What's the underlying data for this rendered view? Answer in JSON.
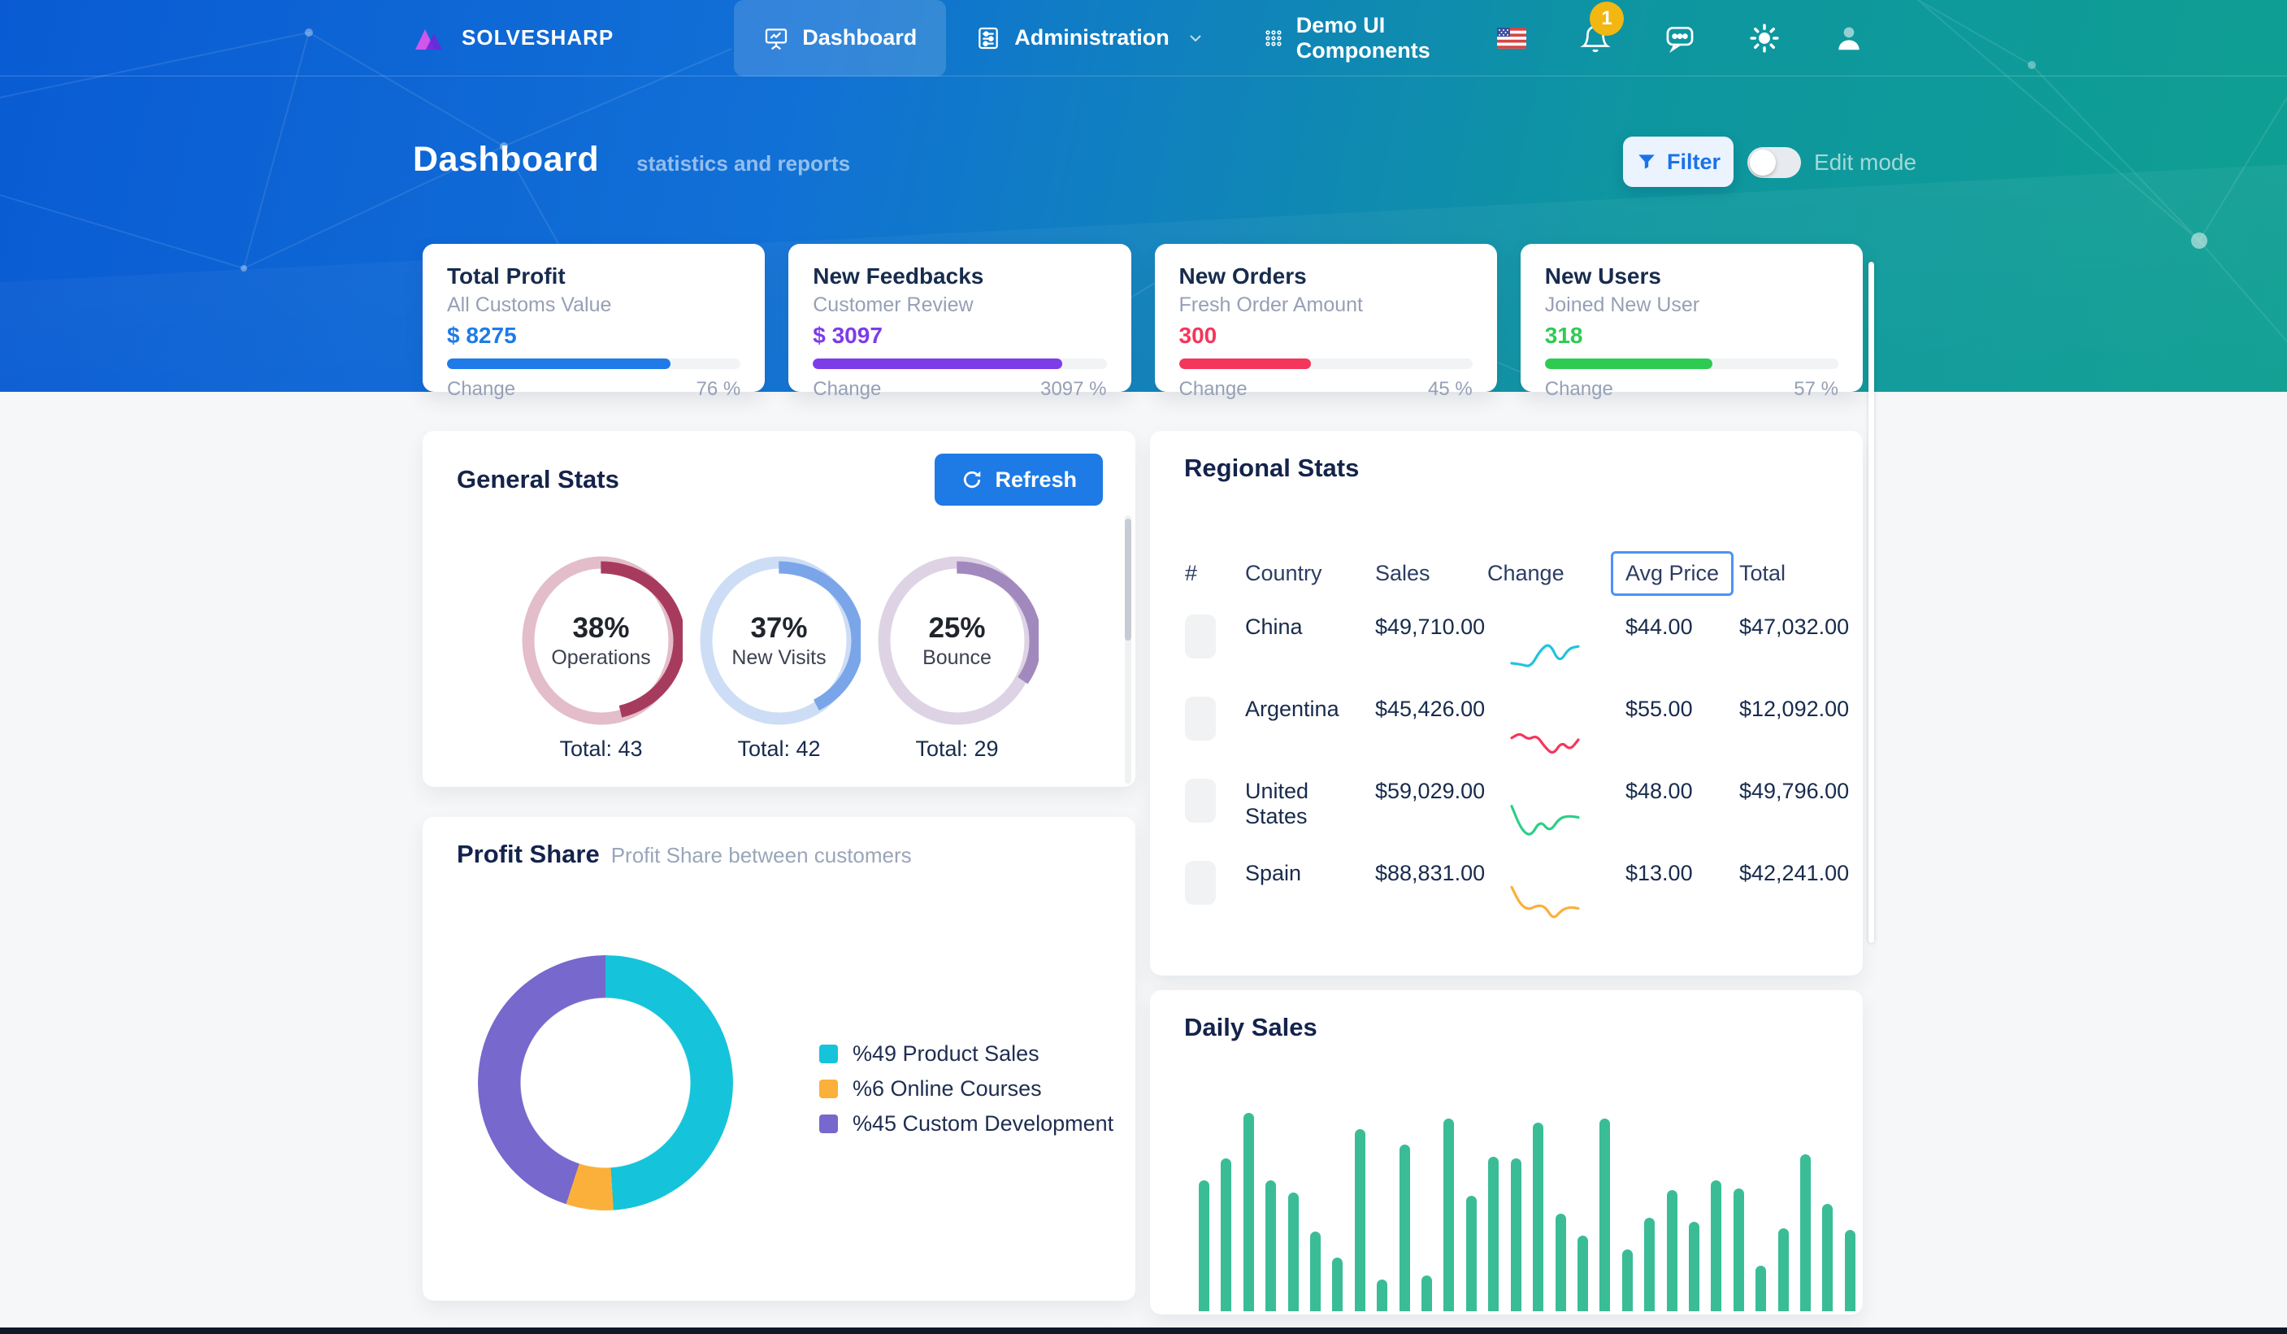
{
  "nav": {
    "brand": "SOLVESHARP",
    "items": [
      {
        "label": "Dashboard"
      },
      {
        "label": "Administration"
      },
      {
        "label": "Demo UI Components"
      }
    ],
    "notification_badge": "1"
  },
  "header": {
    "title": "Dashboard",
    "subtitle": "statistics and reports",
    "filter_label": "Filter",
    "edit_mode_label": "Edit mode"
  },
  "stat_cards": [
    {
      "title": "Total Profit",
      "subtitle": "All Customs Value",
      "value": "$ 8275",
      "change_label": "Change",
      "change_value": "76 %",
      "fill_percent": 76,
      "color": "#1e7be8"
    },
    {
      "title": "New Feedbacks",
      "subtitle": "Customer Review",
      "value": "$ 3097",
      "change_label": "Change",
      "change_value": "3097 %",
      "fill_percent": 85,
      "color": "#7d3ce8"
    },
    {
      "title": "New Orders",
      "subtitle": "Fresh Order Amount",
      "value": "300",
      "change_label": "Change",
      "change_value": "45 %",
      "fill_percent": 45,
      "color": "#f5365c"
    },
    {
      "title": "New Users",
      "subtitle": "Joined New User",
      "value": "318",
      "change_label": "Change",
      "change_value": "57 %",
      "fill_percent": 57,
      "color": "#2ecb52"
    }
  ],
  "general_stats": {
    "title": "General Stats",
    "refresh_label": "Refresh",
    "rings": [
      {
        "percent": "38%",
        "label": "Operations",
        "total_label": "Total: 43",
        "arc": 46,
        "color": "#a73b5e",
        "track": "#e3bdc9"
      },
      {
        "percent": "37%",
        "label": "New Visits",
        "total_label": "Total: 42",
        "arc": 42,
        "color": "#7aa5e9",
        "track": "#cdddf5"
      },
      {
        "percent": "25%",
        "label": "Bounce",
        "total_label": "Total: 29",
        "arc": 34,
        "color": "#a189bd",
        "track": "#ddd3e5"
      }
    ]
  },
  "regional_stats": {
    "title": "Regional Stats",
    "columns": [
      "#",
      "Country",
      "Sales",
      "Change",
      "Avg Price",
      "Total"
    ],
    "rows": [
      {
        "country": "China",
        "sales": "$49,710.00",
        "avg_price": "$44.00",
        "total": "$47,032.00",
        "spark_color": "#22c3dd",
        "trend": [
          0.35,
          0.32,
          0.25,
          0.7,
          0.9,
          0.35,
          0.75,
          0.8
        ]
      },
      {
        "country": "Argentina",
        "sales": "$45,426.00",
        "avg_price": "$55.00",
        "total": "$12,092.00",
        "spark_color": "#f5365c",
        "trend": [
          0.55,
          0.68,
          0.5,
          0.62,
          0.3,
          0.1,
          0.45,
          0.22,
          0.5
        ]
      },
      {
        "country": "United States",
        "sales": "$59,029.00",
        "avg_price": "$48.00",
        "total": "$49,796.00",
        "spark_color": "#2dce89",
        "trend": [
          0.92,
          0.3,
          0.1,
          0.55,
          0.22,
          0.6,
          0.66,
          0.62
        ]
      },
      {
        "country": "Spain",
        "sales": "$88,831.00",
        "avg_price": "$13.00",
        "total": "$42,241.00",
        "spark_color": "#fbb03b",
        "trend": [
          0.95,
          0.5,
          0.34,
          0.46,
          0.44,
          0.08,
          0.34,
          0.42,
          0.38
        ]
      }
    ]
  },
  "profit_share": {
    "title": "Profit Share",
    "subtitle": "Profit Share between customers",
    "segments": [
      {
        "label": "%49 Product Sales",
        "value": 49,
        "color": "#15c4da"
      },
      {
        "label": "%6 Online Courses",
        "value": 6,
        "color": "#fbb03b"
      },
      {
        "label": "%45 Custom Development",
        "value": 45,
        "color": "#7668cd"
      }
    ]
  },
  "daily_sales": {
    "title": "Daily Sales",
    "bar_color": "#3abd96",
    "values": [
      66,
      77,
      100,
      66,
      60,
      40,
      27,
      92,
      16,
      84,
      18,
      97,
      58,
      78,
      77,
      95,
      49,
      38,
      97,
      31,
      47,
      61,
      45,
      66,
      62,
      23,
      42,
      79,
      54,
      41
    ]
  },
  "chart_data": [
    {
      "type": "pie",
      "title": "General Stats rings",
      "series": [
        {
          "name": "Operations",
          "percent": 38,
          "total": 43
        },
        {
          "name": "New Visits",
          "percent": 37,
          "total": 42
        },
        {
          "name": "Bounce",
          "percent": 25,
          "total": 29
        }
      ]
    },
    {
      "type": "pie",
      "title": "Profit Share",
      "categories": [
        "Product Sales",
        "Online Courses",
        "Custom Development"
      ],
      "values": [
        49,
        6,
        45
      ]
    },
    {
      "type": "table",
      "title": "Regional Stats",
      "columns": [
        "#",
        "Country",
        "Sales",
        "Change",
        "Avg Price",
        "Total"
      ],
      "rows": [
        [
          "",
          "China",
          "$49,710.00",
          "spark-up",
          "$44.00",
          "$47,032.00"
        ],
        [
          "",
          "Argentina",
          "$45,426.00",
          "spark-down",
          "$55.00",
          "$12,092.00"
        ],
        [
          "",
          "United States",
          "$59,029.00",
          "spark-dip-recover",
          "$48.00",
          "$49,796.00"
        ],
        [
          "",
          "Spain",
          "$88,831.00",
          "spark-down",
          "$13.00",
          "$42,241.00"
        ]
      ]
    },
    {
      "type": "bar",
      "title": "Daily Sales",
      "values": [
        66,
        77,
        100,
        66,
        60,
        40,
        27,
        92,
        16,
        84,
        18,
        97,
        58,
        78,
        77,
        95,
        49,
        38,
        97,
        31,
        47,
        61,
        45,
        66,
        62,
        23,
        42,
        79,
        54,
        41
      ],
      "ylim": [
        0,
        100
      ],
      "xlabel": "",
      "ylabel": ""
    }
  ]
}
